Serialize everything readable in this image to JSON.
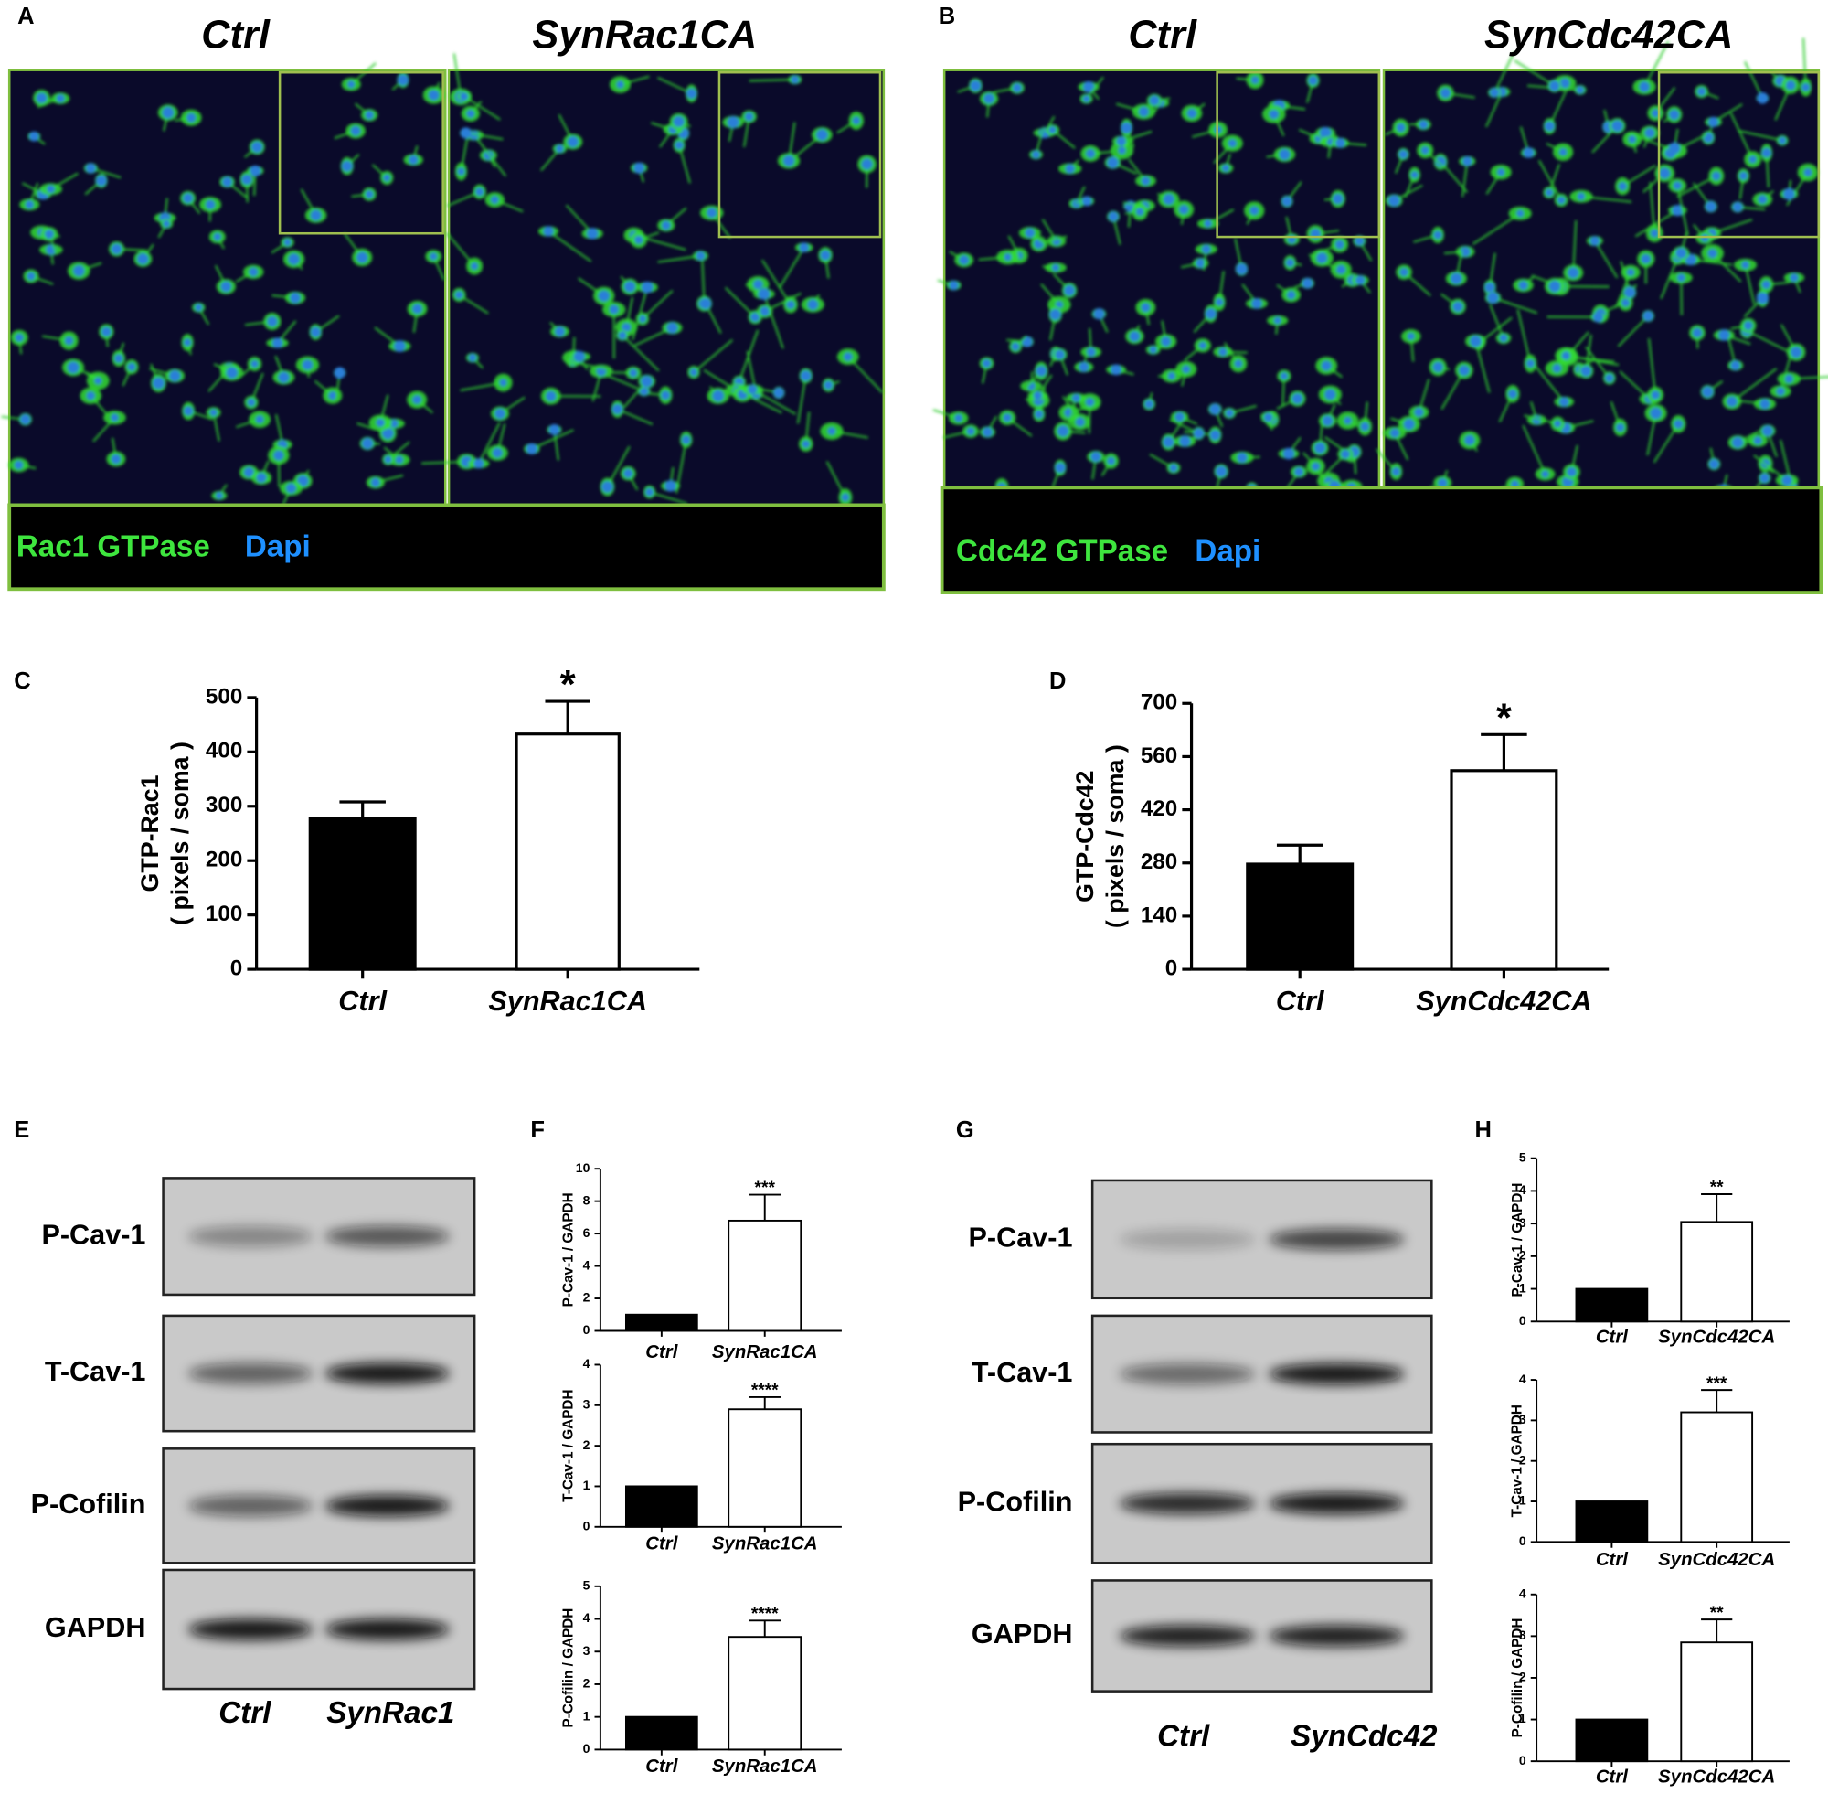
{
  "panel_labels": [
    "A",
    "B",
    "C",
    "D",
    "E",
    "F",
    "G",
    "H"
  ],
  "micrographs": [
    {
      "columns": [
        "Ctrl",
        "SynRac1CA"
      ],
      "stain": "Rac1 GTPase",
      "counterstain": "Dapi"
    },
    {
      "columns": [
        "Ctrl",
        "SynCdc42CA"
      ],
      "stain": "Cdc42 GTPase",
      "counterstain": "Dapi"
    }
  ],
  "blots": [
    {
      "rows": [
        "P-Cav-1",
        "T-Cav-1",
        "P-Cofilin",
        "GAPDH"
      ],
      "lanes": [
        "Ctrl",
        "SynRac1"
      ]
    },
    {
      "rows": [
        "P-Cav-1",
        "T-Cav-1",
        "P-Cofilin",
        "GAPDH"
      ],
      "lanes": [
        "Ctrl",
        "SynCdc42"
      ]
    }
  ],
  "chart_data": [
    {
      "type": "bar",
      "ylabel": [
        "GTP-Rac1",
        "( pixels / soma )"
      ],
      "categories": [
        "Ctrl",
        "SynRac1CA"
      ],
      "values": [
        278,
        433
      ],
      "errors": [
        30,
        60
      ],
      "colors": [
        "#000000",
        "#ffffff"
      ],
      "annotation": "*",
      "ylim": [
        0,
        500
      ],
      "yticks": [
        0,
        100,
        200,
        300,
        400,
        500
      ]
    },
    {
      "type": "bar",
      "ylabel": [
        "GTP-Cdc42",
        "( pixels / soma )"
      ],
      "categories": [
        "Ctrl",
        "SynCdc42CA"
      ],
      "values": [
        277,
        523
      ],
      "errors": [
        50,
        95
      ],
      "colors": [
        "#000000",
        "#ffffff"
      ],
      "annotation": "*",
      "ylim": [
        0,
        700
      ],
      "yticks": [
        0,
        140,
        280,
        420,
        560,
        700
      ]
    },
    {
      "type": "bar",
      "ylabel": [
        "P-Cav-1 / GAPDH"
      ],
      "categories": [
        "Ctrl",
        "SynRac1CA"
      ],
      "values": [
        1,
        6.8
      ],
      "errors": [
        0,
        1.6
      ],
      "colors": [
        "#000000",
        "#ffffff"
      ],
      "annotation": "***",
      "ylim": [
        0,
        10
      ],
      "yticks": [
        0,
        2,
        4,
        6,
        8,
        10
      ]
    },
    {
      "type": "bar",
      "ylabel": [
        "T-Cav-1 / GAPDH"
      ],
      "categories": [
        "Ctrl",
        "SynRac1CA"
      ],
      "values": [
        1,
        2.9
      ],
      "errors": [
        0,
        0.3
      ],
      "colors": [
        "#000000",
        "#ffffff"
      ],
      "annotation": "****",
      "ylim": [
        0,
        4
      ],
      "yticks": [
        0,
        1,
        2,
        3,
        4
      ]
    },
    {
      "type": "bar",
      "ylabel": [
        "P-Cofilin / GAPDH"
      ],
      "categories": [
        "Ctrl",
        "SynRac1CA"
      ],
      "values": [
        1,
        3.45
      ],
      "errors": [
        0,
        0.5
      ],
      "colors": [
        "#000000",
        "#ffffff"
      ],
      "annotation": "****",
      "ylim": [
        0,
        5
      ],
      "yticks": [
        0,
        1,
        2,
        3,
        4,
        5
      ]
    },
    {
      "type": "bar",
      "ylabel": [
        "P-Cav-1 / GAPDH"
      ],
      "categories": [
        "Ctrl",
        "SynCdc42CA"
      ],
      "values": [
        1,
        3.05
      ],
      "errors": [
        0,
        0.85
      ],
      "colors": [
        "#000000",
        "#ffffff"
      ],
      "annotation": "**",
      "ylim": [
        0,
        5
      ],
      "yticks": [
        0,
        1,
        2,
        3,
        4,
        5
      ]
    },
    {
      "type": "bar",
      "ylabel": [
        "T-Cav-1 / GAPDH"
      ],
      "categories": [
        "Ctrl",
        "SynCdc42CA"
      ],
      "values": [
        1,
        3.2
      ],
      "errors": [
        0,
        0.55
      ],
      "colors": [
        "#000000",
        "#ffffff"
      ],
      "annotation": "***",
      "ylim": [
        0,
        4
      ],
      "yticks": [
        0,
        1,
        2,
        3,
        4
      ]
    },
    {
      "type": "bar",
      "ylabel": [
        "P-Cofilin / GAPDH"
      ],
      "categories": [
        "Ctrl",
        "SynCdc42CA"
      ],
      "values": [
        1,
        2.85
      ],
      "errors": [
        0,
        0.55
      ],
      "colors": [
        "#000000",
        "#ffffff"
      ],
      "annotation": "**",
      "ylim": [
        0,
        4
      ],
      "yticks": [
        0,
        1,
        2,
        3,
        4
      ]
    }
  ]
}
